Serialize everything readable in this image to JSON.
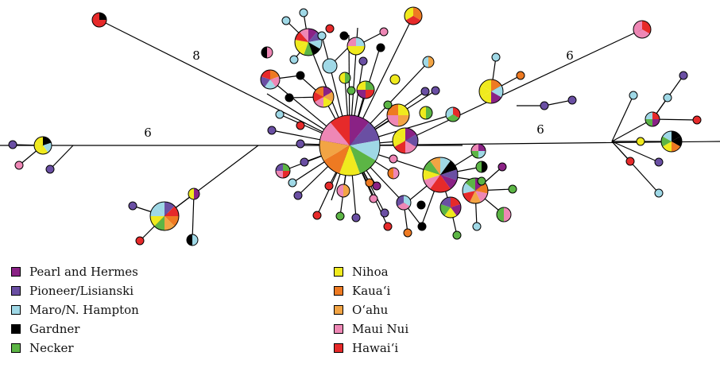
{
  "colors": {
    "pearl_hermes": "#8a2285",
    "pioneer_lisianski": "#6a4fa3",
    "maro_hampton": "#9fd8e6",
    "gardner": "#000000",
    "necker": "#5cb545",
    "nihoa": "#f0ea1e",
    "kauai": "#ee7a22",
    "oahu": "#f2a444",
    "maui_nui": "#ee87b5",
    "hawaii": "#e62a2a"
  },
  "branch_labels": [
    "8",
    "6",
    "6",
    "6"
  ],
  "legend": {
    "left": [
      {
        "label": "Pearl and Hermes",
        "color_key": "pearl_hermes"
      },
      {
        "label": "Pioneer/Lisianski",
        "color_key": "pioneer_lisianski"
      },
      {
        "label": "Maro/N. Hampton",
        "color_key": "maro_hampton"
      },
      {
        "label": "Gardner",
        "color_key": "gardner"
      },
      {
        "label": "Necker",
        "color_key": "necker"
      }
    ],
    "right": [
      {
        "label": "Nihoa",
        "color_key": "nihoa"
      },
      {
        "label": "Kaua‘i",
        "color_key": "kauai"
      },
      {
        "label": "O‘ahu",
        "color_key": "oahu"
      },
      {
        "label": "Maui Nui",
        "color_key": "maui_nui"
      },
      {
        "label": "Hawai‘i",
        "color_key": "hawaii"
      }
    ]
  }
}
